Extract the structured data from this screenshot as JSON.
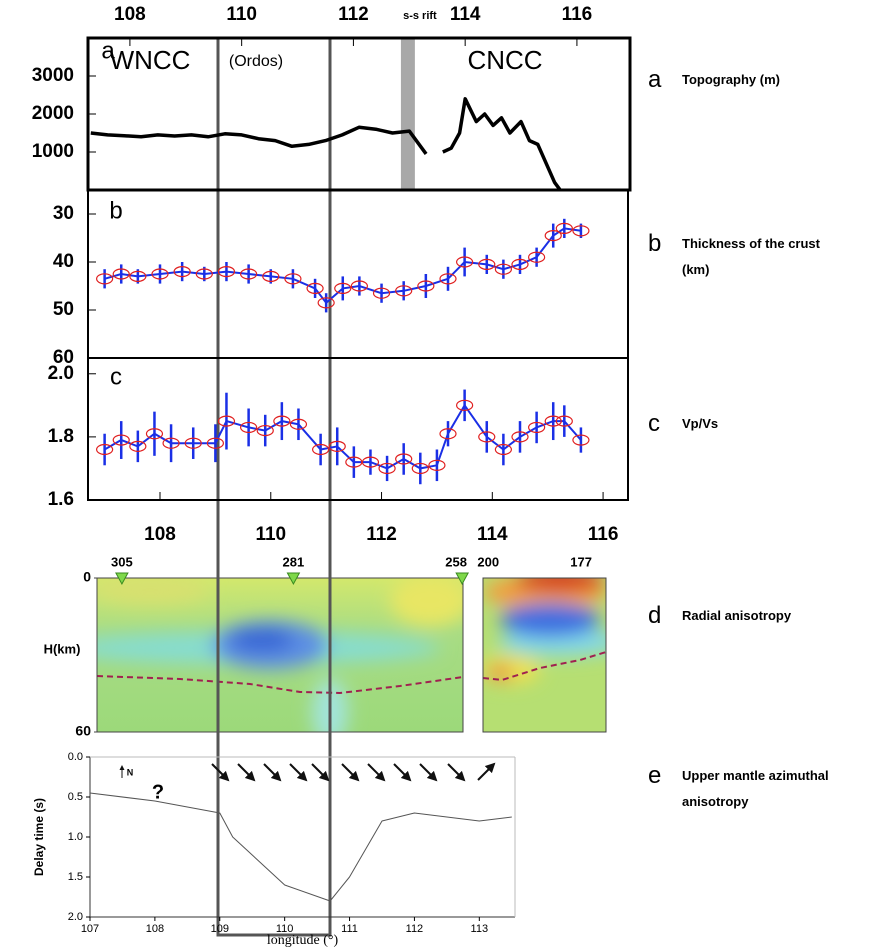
{
  "chart_data": [
    {
      "type": "line",
      "panel_label": "a",
      "caption": "Topography (m)",
      "annotations": [
        "WNCC",
        "(Ordos)",
        "CNCC"
      ],
      "rift_label": "s-s rift",
      "rift": [
        112.85,
        113.1
      ],
      "x": [
        107.3,
        107.6,
        107.9,
        108.2,
        108.5,
        108.8,
        109.1,
        109.4,
        109.7,
        110.0,
        110.3,
        110.6,
        110.9,
        111.2,
        111.5,
        111.8,
        112.1,
        112.4,
        112.7,
        113.0,
        113.3,
        113.45,
        113.6,
        113.75,
        113.9,
        114.0,
        114.2,
        114.35,
        114.5,
        114.65,
        114.8,
        115.0,
        115.15,
        115.3,
        115.45,
        115.6,
        115.7
      ],
      "series": [
        {
          "color": "#000000",
          "values": [
            1500,
            1450,
            1430,
            1400,
            1450,
            1420,
            1450,
            1400,
            1480,
            1450,
            1350,
            1300,
            1150,
            1200,
            1300,
            1450,
            1650,
            1600,
            1500,
            1550,
            950,
            null,
            1000,
            1100,
            1500,
            2400,
            1800,
            2000,
            1700,
            1900,
            1500,
            1800,
            1300,
            1200,
            700,
            200,
            0
          ]
        }
      ],
      "xlim": [
        107.25,
        116.95
      ],
      "xticks": [
        108,
        110,
        112,
        114,
        116
      ],
      "xtick_side": "top",
      "ylim": [
        0,
        4000
      ],
      "yticks": [
        1000,
        2000,
        3000
      ]
    },
    {
      "type": "errorbar",
      "panel_label": "b",
      "caption": "Thickness of the crust (km)",
      "x": [
        107.0,
        107.3,
        107.6,
        108.0,
        108.4,
        108.8,
        109.2,
        109.6,
        110.0,
        110.4,
        110.8,
        111.0,
        111.3,
        111.6,
        112.0,
        112.4,
        112.8,
        113.2,
        113.5,
        113.9,
        114.2,
        114.5,
        114.8,
        115.1,
        115.3,
        115.6
      ],
      "series": [
        {
          "color": "#1a2fe6",
          "marker_color": "#e02020",
          "values": [
            43.5,
            42.5,
            43,
            42.5,
            42,
            42.5,
            42,
            42.5,
            43,
            43.5,
            45.5,
            48.5,
            45.5,
            45,
            46.5,
            46,
            45,
            43.5,
            40,
            40.5,
            41.5,
            40.5,
            39,
            34.5,
            33,
            33.5
          ],
          "errors": [
            2,
            2,
            1.5,
            2,
            2,
            1.5,
            2,
            2,
            1.5,
            2,
            2,
            2,
            2.5,
            2,
            2,
            2,
            2.5,
            2.5,
            3,
            2,
            2,
            2,
            2,
            2.5,
            2,
            1.5
          ]
        }
      ],
      "xlim": [
        106.7,
        116.45
      ],
      "ylim": [
        25,
        60
      ],
      "y_inverted": true,
      "yticks": [
        30,
        40,
        50,
        60
      ]
    },
    {
      "type": "errorbar",
      "panel_label": "c",
      "caption": "Vp/Vs",
      "x": [
        107.0,
        107.3,
        107.6,
        107.9,
        108.2,
        108.6,
        109.0,
        109.2,
        109.6,
        109.9,
        110.2,
        110.5,
        110.9,
        111.2,
        111.5,
        111.8,
        112.1,
        112.4,
        112.7,
        113.0,
        113.2,
        113.5,
        113.9,
        114.2,
        114.5,
        114.8,
        115.1,
        115.3,
        115.6
      ],
      "series": [
        {
          "color": "#1a2fe6",
          "marker_color": "#e02020",
          "values": [
            1.76,
            1.79,
            1.77,
            1.81,
            1.78,
            1.78,
            1.78,
            1.85,
            1.83,
            1.82,
            1.85,
            1.84,
            1.76,
            1.77,
            1.72,
            1.72,
            1.7,
            1.73,
            1.7,
            1.71,
            1.81,
            1.9,
            1.8,
            1.76,
            1.8,
            1.83,
            1.85,
            1.85,
            1.79
          ],
          "errors": [
            0.05,
            0.06,
            0.05,
            0.07,
            0.06,
            0.05,
            0.06,
            0.09,
            0.06,
            0.05,
            0.06,
            0.05,
            0.05,
            0.06,
            0.05,
            0.04,
            0.04,
            0.05,
            0.05,
            0.05,
            0.04,
            0.05,
            0.05,
            0.05,
            0.05,
            0.05,
            0.06,
            0.05,
            0.04
          ]
        }
      ],
      "xlim": [
        106.7,
        116.45
      ],
      "xticks": [
        108,
        110,
        112,
        114,
        116
      ],
      "xtick_side": "bottom",
      "ylim": [
        1.6,
        2.05
      ],
      "yticks": [
        1.6,
        1.8,
        {
          "value": 2,
          "label": "2.0"
        }
      ]
    },
    {
      "type": "section",
      "panel_label": "d",
      "caption": "Radial anisotropy",
      "ylabel": "H(km)",
      "ylim": [
        0,
        60
      ],
      "y_inverted": true,
      "yticks": [
        0,
        60
      ],
      "xlim": [
        106.85,
        116.05
      ],
      "stations": [
        {
          "name": "305",
          "x": 107.3,
          "marked": true
        },
        {
          "name": "281",
          "x": 110.4,
          "marked": true
        },
        {
          "name": "258",
          "x": 113.45,
          "marked": true
        },
        {
          "name": "200",
          "x": 113.85,
          "marked": false
        },
        {
          "name": "177",
          "x": 115.6,
          "marked": false
        }
      ]
    },
    {
      "type": "line",
      "panel_label": "e",
      "caption": "Upper mantle azimuthal anisotropy",
      "xlabel": "longitude (°)",
      "ylabel": "Delay time (s)",
      "annotations": [
        "?",
        "N"
      ],
      "x": [
        107,
        108,
        109,
        109.2,
        110,
        110.7,
        111,
        111.5,
        112,
        113,
        113.5
      ],
      "series": [
        {
          "color": "#555555",
          "values": [
            0.45,
            0.55,
            0.7,
            1.0,
            1.6,
            1.8,
            1.5,
            0.8,
            0.7,
            0.8,
            0.75
          ]
        }
      ],
      "xlim": [
        107,
        113.55
      ],
      "xticks": [
        107,
        108,
        109,
        110,
        111,
        112,
        113
      ],
      "xtick_side": "bottom",
      "ylim": [
        0,
        2
      ],
      "y_inverted": true,
      "yticks": [
        {
          "value": 0,
          "label": "0.0"
        },
        0.5,
        {
          "value": 1,
          "label": "1.0"
        },
        1.5,
        {
          "value": 2,
          "label": "2.0"
        }
      ]
    }
  ]
}
